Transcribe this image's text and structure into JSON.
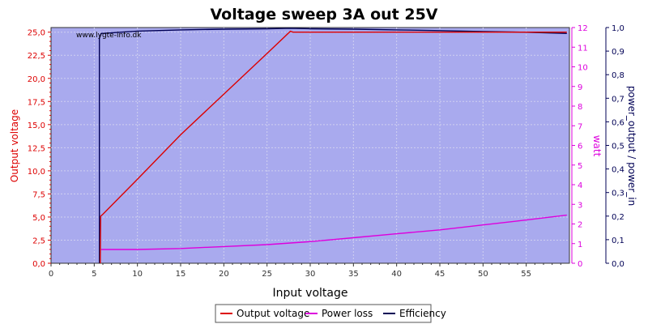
{
  "chart_data": {
    "type": "line",
    "title": "Voltage sweep 3A out 25V",
    "watermark": "www.lygte-info.dk",
    "xlabel": "Input voltage",
    "xlim": [
      0,
      60
    ],
    "xticks": [
      "0",
      "5",
      "10",
      "15",
      "20",
      "25",
      "30",
      "35",
      "40",
      "45",
      "50",
      "55"
    ],
    "grid": true,
    "plot_background": "#a9aaee",
    "legend_placement": "bottom-center",
    "axes": {
      "left": {
        "label": "Output voltage",
        "color": "#dd0000",
        "ylim": [
          0,
          25.5
        ],
        "ticks": [
          "0,0",
          "2,5",
          "5,0",
          "7,5",
          "10,0",
          "12,5",
          "15,0",
          "17,5",
          "20,0",
          "22,5",
          "25,0"
        ]
      },
      "right1": {
        "label": "watt",
        "color": "#dd00dd",
        "ylim": [
          0,
          12
        ],
        "ticks": [
          "0",
          "1",
          "2",
          "3",
          "4",
          "5",
          "6",
          "7",
          "8",
          "9",
          "10",
          "11",
          "12"
        ]
      },
      "right2": {
        "label": "power_output / power_in",
        "color": "#000055",
        "ylim": [
          0,
          1.0
        ],
        "ticks": [
          "0,0",
          "0,1",
          "0,2",
          "0,3",
          "0,4",
          "0,5",
          "0,6",
          "0,7",
          "0,8",
          "0,9",
          "1,0"
        ]
      }
    },
    "series": [
      {
        "name": "Output voltage",
        "axis": "left",
        "color": "#dd0000",
        "x": [
          5.7,
          5.7,
          5.75,
          6,
          10,
          15,
          20,
          25,
          27.7,
          28,
          35,
          40,
          45,
          50,
          55,
          59.7
        ],
        "y": [
          0,
          0.5,
          5.1,
          5.3,
          9.1,
          13.9,
          18.3,
          22.7,
          25.1,
          25.0,
          25.0,
          25.0,
          25.0,
          25.0,
          25.0,
          25.0
        ]
      },
      {
        "name": "Power loss",
        "axis": "right1",
        "color": "#dd00dd",
        "x": [
          5.8,
          6,
          10,
          15,
          20,
          25,
          30,
          35,
          40,
          45,
          50,
          55,
          59.7
        ],
        "y": [
          0.7,
          0.7,
          0.7,
          0.75,
          0.85,
          0.95,
          1.1,
          1.3,
          1.5,
          1.7,
          1.95,
          2.2,
          2.45
        ]
      },
      {
        "name": "Efficiency",
        "axis": "right2",
        "color": "#000055",
        "x": [
          5.6,
          5.6,
          5.8,
          10,
          15,
          20,
          25,
          27.7,
          30,
          35,
          40,
          45,
          50,
          55,
          59.7
        ],
        "y": [
          0,
          0.955,
          0.975,
          0.985,
          0.99,
          0.993,
          0.995,
          0.997,
          0.995,
          0.993,
          0.99,
          0.987,
          0.983,
          0.98,
          0.975
        ]
      }
    ]
  }
}
